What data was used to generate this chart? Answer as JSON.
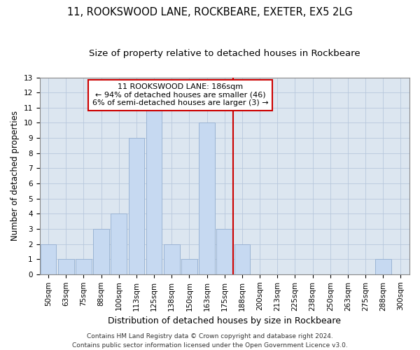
{
  "title": "11, ROOKSWOOD LANE, ROCKBEARE, EXETER, EX5 2LG",
  "subtitle": "Size of property relative to detached houses in Rockbeare",
  "xlabel": "Distribution of detached houses by size in Rockbeare",
  "ylabel": "Number of detached properties",
  "categories": [
    "50sqm",
    "63sqm",
    "75sqm",
    "88sqm",
    "100sqm",
    "113sqm",
    "125sqm",
    "138sqm",
    "150sqm",
    "163sqm",
    "175sqm",
    "188sqm",
    "200sqm",
    "213sqm",
    "225sqm",
    "238sqm",
    "250sqm",
    "263sqm",
    "275sqm",
    "288sqm",
    "300sqm"
  ],
  "values": [
    2,
    1,
    1,
    3,
    4,
    9,
    11,
    2,
    1,
    10,
    3,
    2,
    0,
    0,
    0,
    0,
    0,
    0,
    0,
    1,
    0
  ],
  "bar_color": "#c6d9f1",
  "bar_edgecolor": "#9ab4d4",
  "grid_color": "#b8c8dc",
  "background_color": "#dce6f0",
  "vline_x_index": 11,
  "vline_color": "#cc0000",
  "annotation_line1": "11 ROOKSWOOD LANE: 186sqm",
  "annotation_line2": "← 94% of detached houses are smaller (46)",
  "annotation_line3": "6% of semi-detached houses are larger (3) →",
  "annotation_box_color": "#cc0000",
  "ylim": [
    0,
    13
  ],
  "yticks": [
    0,
    1,
    2,
    3,
    4,
    5,
    6,
    7,
    8,
    9,
    10,
    11,
    12,
    13
  ],
  "footer_line1": "Contains HM Land Registry data © Crown copyright and database right 2024.",
  "footer_line2": "Contains public sector information licensed under the Open Government Licence v3.0.",
  "title_fontsize": 10.5,
  "subtitle_fontsize": 9.5,
  "xlabel_fontsize": 9,
  "ylabel_fontsize": 8.5,
  "tick_fontsize": 7.5,
  "annotation_fontsize": 8,
  "footer_fontsize": 6.5
}
